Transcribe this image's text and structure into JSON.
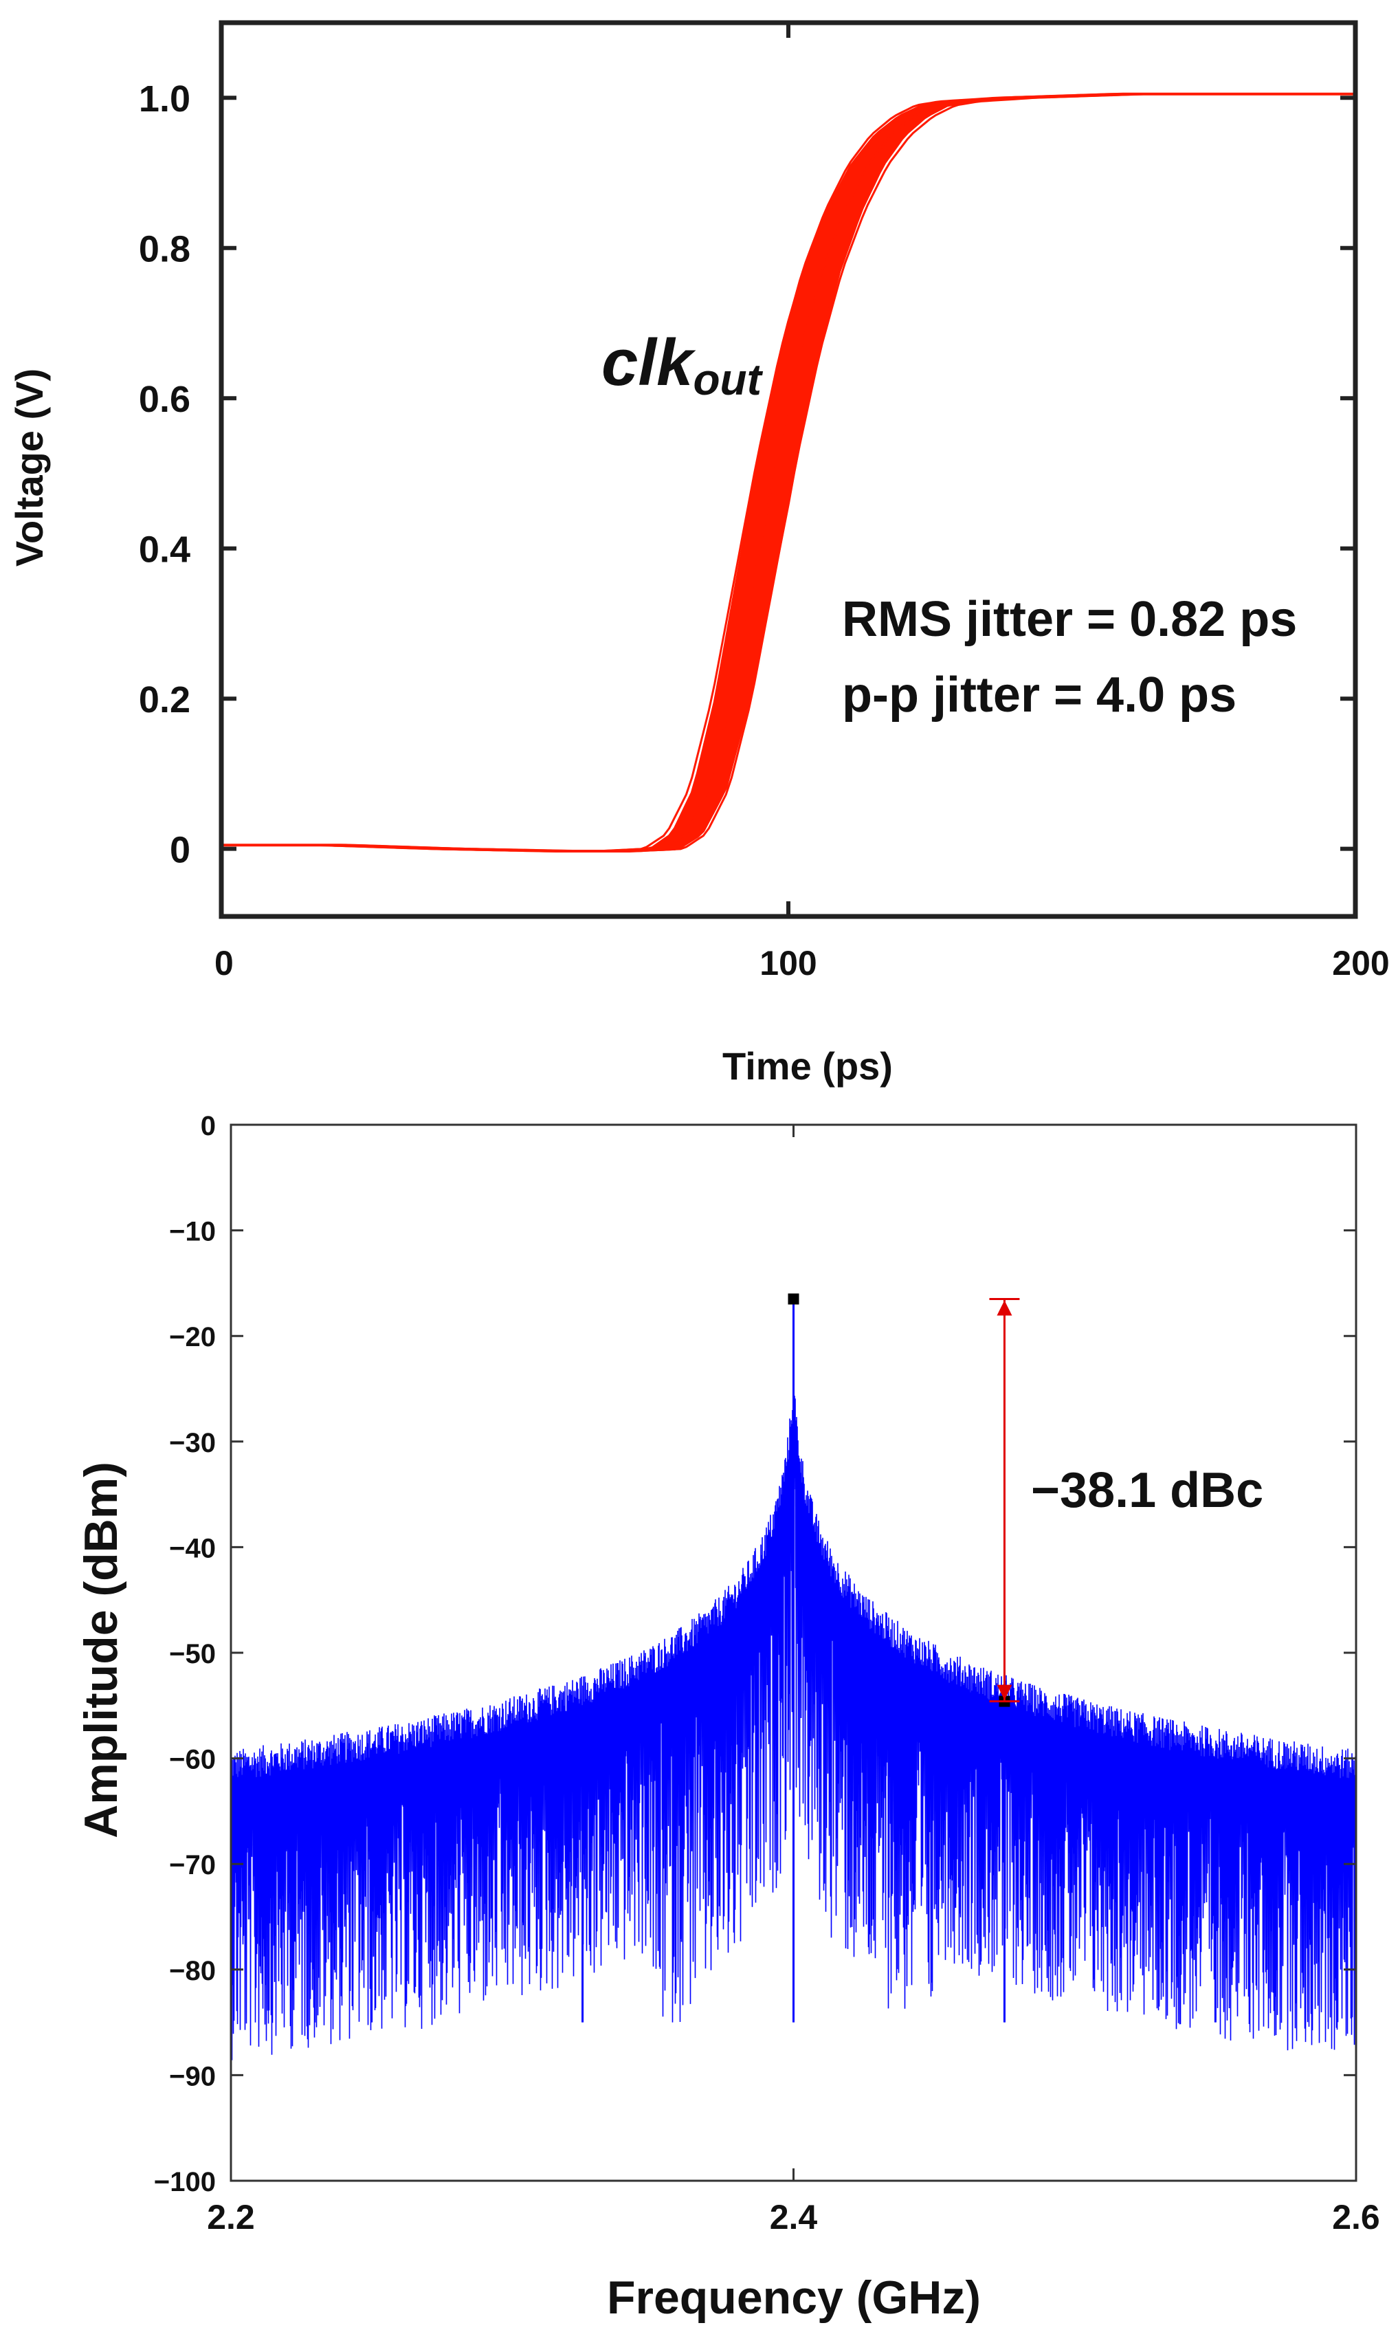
{
  "colors": {
    "eye_trace": "#ff1a00",
    "spectrum_trace": "#0000ff",
    "marker": "#e00000",
    "frame": "#222222"
  },
  "chart_data": [
    {
      "type": "line",
      "title": "",
      "xlabel": "Time (ps)",
      "ylabel": "Voltage (V)",
      "xlim": [
        0,
        200
      ],
      "ylim": [
        -0.09,
        1.1
      ],
      "xticks": [
        0,
        100,
        200
      ],
      "xtick_labels": [
        "0",
        "100",
        "200"
      ],
      "yticks": [
        0,
        0.2,
        0.4,
        0.6,
        0.8,
        1.0
      ],
      "ytick_labels": [
        "0",
        "0.2",
        "0.4",
        "0.6",
        "0.8",
        "1.0"
      ],
      "series": [
        {
          "name": "clk_out rising edge (overlaid traces)",
          "x": [
            0,
            20,
            40,
            60,
            70,
            78,
            82,
            86,
            90,
            94,
            98,
            102,
            106,
            110,
            114,
            118,
            122,
            126,
            130,
            140,
            160,
            200
          ],
          "y": [
            0.005,
            0.005,
            0.0,
            -0.003,
            -0.003,
            0.0,
            0.02,
            0.08,
            0.2,
            0.36,
            0.52,
            0.66,
            0.77,
            0.85,
            0.91,
            0.95,
            0.975,
            0.99,
            0.995,
            1.0,
            1.005,
            1.005
          ],
          "band_width_ps": 7
        }
      ],
      "annotations": {
        "signal_name_main": "clk",
        "signal_name_sub": "out",
        "rms_jitter": "RMS jitter = 0.82 ps",
        "pp_jitter": "p-p jitter = 4.0 ps"
      }
    },
    {
      "type": "line",
      "title": "",
      "xlabel": "Frequency (GHz)",
      "ylabel": "Amplitude (dBm)",
      "xlim": [
        2.2,
        2.6
      ],
      "ylim": [
        -100,
        0
      ],
      "xticks": [
        2.2,
        2.4,
        2.6
      ],
      "xtick_labels": [
        "2.2",
        "2.4",
        "2.6"
      ],
      "yticks": [
        0,
        -10,
        -20,
        -30,
        -40,
        -50,
        -60,
        -70,
        -80,
        -90,
        -100
      ],
      "ytick_labels": [
        "0",
        "−10",
        "−20",
        "−30",
        "−40",
        "−50",
        "−60",
        "−70",
        "−80",
        "−90",
        "−100"
      ],
      "series": [
        {
          "name": "spectrum",
          "carrier_ghz": 2.4,
          "carrier_dbm": -16.5,
          "spurs": [
            {
              "freq_ghz": 2.25,
              "peak_dbm": -61.5
            },
            {
              "freq_ghz": 2.325,
              "peak_dbm": -55
            },
            {
              "freq_ghz": 2.475,
              "peak_dbm": -54.6
            },
            {
              "freq_ghz": 2.55,
              "peak_dbm": -62
            }
          ],
          "noise_floor_dbm": -80
        }
      ],
      "markers": [
        {
          "freq_ghz": 2.4,
          "dbm": -16.5
        },
        {
          "freq_ghz": 2.475,
          "dbm": -54.6
        }
      ],
      "annotation": {
        "label": "−38.1 dBc",
        "top_dbm": -16.5,
        "bottom_dbm": -54.6,
        "freq_ghz": 2.475
      }
    }
  ]
}
